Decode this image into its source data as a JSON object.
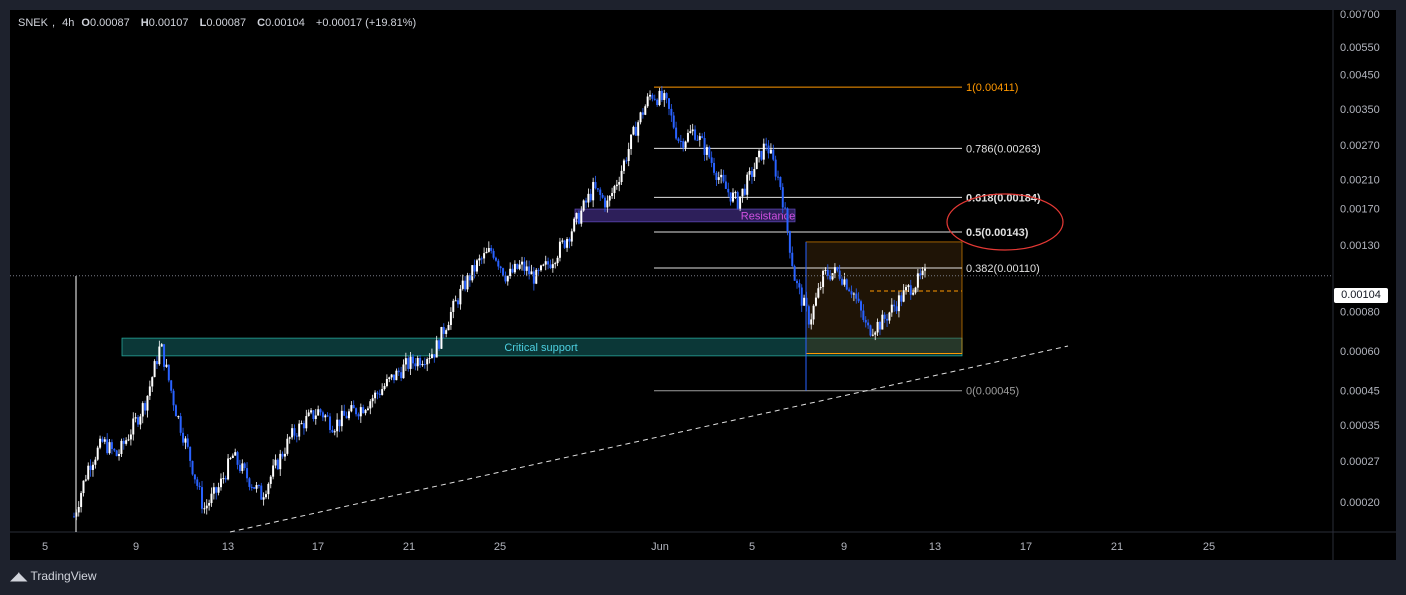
{
  "header": {
    "symbol": "SNEK",
    "interval": "4h",
    "open_label": "O",
    "open": "0.00087",
    "high_label": "H",
    "high": "0.00107",
    "low_label": "L",
    "low": "0.00087",
    "close_label": "C",
    "close": "0.00104",
    "change": "+0.00017 (+19.81%)"
  },
  "brand": {
    "name": "TradingView"
  },
  "current_price_label": "0.00104",
  "colors": {
    "background": "#000000",
    "panel": "#1e222d",
    "candle_up": "#ffffff",
    "candle_down": "#2962ff",
    "fib_top": "#ff9800",
    "fib_line": "#e0e0e0",
    "resistance_zone": "#3c2a78",
    "support_zone": "#0f4a4a",
    "annotation_circle": "#e53935"
  },
  "chart_data": {
    "type": "candlestick",
    "x_ticks": [
      "5",
      "9",
      "13",
      "17",
      "21",
      "25",
      "Jun",
      "5",
      "9",
      "13",
      "17",
      "21",
      "25"
    ],
    "y_ticks": [
      "0.00700",
      "0.00550",
      "0.00450",
      "0.00350",
      "0.00270",
      "0.00210",
      "0.00170",
      "0.00130",
      "0.00080",
      "0.00060",
      "0.00045",
      "0.00035",
      "0.00027",
      "0.00020"
    ],
    "y_tick_values": [
      0.007,
      0.0055,
      0.0045,
      0.0035,
      0.0027,
      0.0021,
      0.0017,
      0.0013,
      0.0008,
      0.0006,
      0.00045,
      0.00035,
      0.00027,
      0.0002
    ],
    "y_scale": "log",
    "current_price": 0.00104,
    "fib_levels": [
      {
        "label": "1(0.00411)",
        "value": 0.00411
      },
      {
        "label": "0.786(0.00263)",
        "value": 0.00263
      },
      {
        "label": "0.618(0.00184)",
        "value": 0.00184
      },
      {
        "label": "0.5(0.00143)",
        "value": 0.00143
      },
      {
        "label": "0.382(0.00110)",
        "value": 0.0011
      },
      {
        "label": "0(0.00045)",
        "value": 0.00045
      }
    ],
    "zones": [
      {
        "label": "Resistance",
        "from": 0.00154,
        "to": 0.00169
      },
      {
        "label": "Critical support",
        "from": 0.00058,
        "to": 0.00066
      }
    ],
    "price_series": [
      0.00018,
      0.00026,
      0.00031,
      0.00028,
      0.00034,
      0.00042,
      0.00063,
      0.0004,
      0.00028,
      0.00019,
      0.00022,
      0.00028,
      0.00024,
      0.00021,
      0.00026,
      0.00032,
      0.00036,
      0.00039,
      0.00035,
      0.00038,
      0.0004,
      0.00044,
      0.00049,
      0.00054,
      0.00057,
      0.0006,
      0.00077,
      0.00096,
      0.00114,
      0.00126,
      0.00103,
      0.00112,
      0.00102,
      0.00115,
      0.00133,
      0.0016,
      0.00196,
      0.00175,
      0.00228,
      0.00311,
      0.00392,
      0.0037,
      0.00275,
      0.003,
      0.0025,
      0.002,
      0.00178,
      0.0022,
      0.00274,
      0.002,
      0.001,
      0.00075,
      0.00105,
      0.00107,
      0.00093,
      0.0007,
      0.00074,
      0.00085,
      0.00096,
      0.00104
    ]
  }
}
